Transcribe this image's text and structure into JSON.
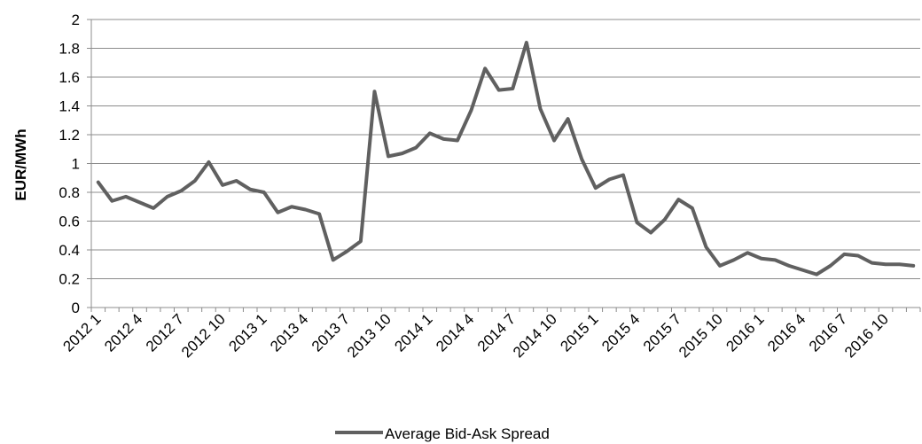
{
  "chart_data": {
    "type": "line",
    "ylabel": "EUR/MWh",
    "ylim": [
      0,
      2
    ],
    "y_ticks": [
      "0",
      "0.2",
      "0.4",
      "0.6",
      "0.8",
      "1",
      "1.2",
      "1.4",
      "1.6",
      "1.8",
      "2"
    ],
    "grid": true,
    "legend_position": "bottom",
    "x_tick_labels": [
      "2012 1",
      "2012 4",
      "2012 7",
      "2012 10",
      "2013 1",
      "2013 4",
      "2013 7",
      "2013 10",
      "2014 1",
      "2014 4",
      "2014 7",
      "2014 10",
      "2015 1",
      "2015 4",
      "2015 7",
      "2015 10",
      "2016 1",
      "2016 4",
      "2016 7",
      "2016 10"
    ],
    "categories": [
      "2012 1",
      "2012 2",
      "2012 3",
      "2012 4",
      "2012 5",
      "2012 6",
      "2012 7",
      "2012 8",
      "2012 9",
      "2012 10",
      "2012 11",
      "2012 12",
      "2013 1",
      "2013 2",
      "2013 3",
      "2013 4",
      "2013 5",
      "2013 6",
      "2013 7",
      "2013 8",
      "2013 9",
      "2013 10",
      "2013 11",
      "2013 12",
      "2014 1",
      "2014 2",
      "2014 3",
      "2014 4",
      "2014 5",
      "2014 6",
      "2014 7",
      "2014 8",
      "2014 9",
      "2014 10",
      "2014 11",
      "2014 12",
      "2015 1",
      "2015 2",
      "2015 3",
      "2015 4",
      "2015 5",
      "2015 6",
      "2015 7",
      "2015 8",
      "2015 9",
      "2015 10",
      "2015 11",
      "2015 12",
      "2016 1",
      "2016 2",
      "2016 3",
      "2016 4",
      "2016 5",
      "2016 6",
      "2016 7",
      "2016 8",
      "2016 9",
      "2016 10",
      "2016 11",
      "2016 12"
    ],
    "series": [
      {
        "name": "Average Bid-Ask Spread",
        "color": "#606060",
        "values": [
          0.87,
          0.74,
          0.77,
          0.73,
          0.69,
          0.77,
          0.81,
          0.88,
          1.01,
          0.85,
          0.88,
          0.82,
          0.8,
          0.66,
          0.7,
          0.68,
          0.65,
          0.33,
          0.39,
          0.46,
          1.5,
          1.05,
          1.07,
          1.11,
          1.21,
          1.17,
          1.16,
          1.37,
          1.66,
          1.51,
          1.52,
          1.84,
          1.38,
          1.16,
          1.31,
          1.03,
          0.83,
          0.89,
          0.92,
          0.59,
          0.52,
          0.61,
          0.75,
          0.69,
          0.42,
          0.29,
          0.33,
          0.38,
          0.34,
          0.33,
          0.29,
          0.26,
          0.23,
          0.29,
          0.37,
          0.36,
          0.31,
          0.3,
          0.3,
          0.29
        ]
      }
    ]
  }
}
